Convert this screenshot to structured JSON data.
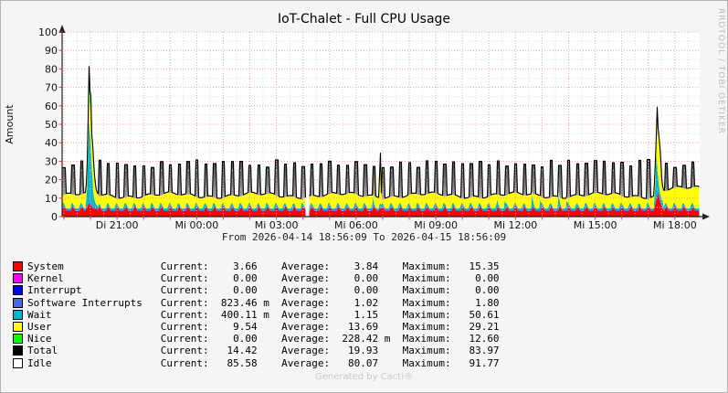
{
  "header": {
    "title": "IoT-Chalet - Full CPU Usage"
  },
  "watermark": "RRDTOOL / TOBI OETIKER",
  "footer": {
    "credit": "Generated by Cacti®"
  },
  "chart_data": {
    "type": "area",
    "title": "IoT-Chalet - Full CPU Usage",
    "xlabel": "",
    "ylabel": "Amount",
    "ylim": [
      0,
      100
    ],
    "y_tick_step": 10,
    "y_minor_step": 5,
    "subtitle": "From 2026-04-14 18:56:09 To 2026-04-15 18:56:09",
    "x_range_minutes": 1440,
    "x_first_hour_minute": 4,
    "x_ticks": [
      {
        "label": "Di 21:00",
        "minute": 124
      },
      {
        "label": "Mi 00:00",
        "minute": 304
      },
      {
        "label": "Mi 03:00",
        "minute": 484
      },
      {
        "label": "Mi 06:00",
        "minute": 664
      },
      {
        "label": "Mi 09:00",
        "minute": 844
      },
      {
        "label": "Mi 12:00",
        "minute": 1024
      },
      {
        "label": "Mi 15:00",
        "minute": 1204
      },
      {
        "label": "Mi 18:00",
        "minute": 1384
      }
    ],
    "grid": {
      "major_color": "#f2a0a0",
      "minor_color": "#dcdcdc",
      "tick_color": "#d94040",
      "axis_color": "#222222"
    },
    "legend_position": "bottom",
    "legend": [
      {
        "label": "System",
        "color": "#ff0000",
        "current": "3.66",
        "current_unit": "",
        "average": "3.84",
        "average_unit": "",
        "maximum": "15.35"
      },
      {
        "label": "Kernel",
        "color": "#ff00ff",
        "current": "0.00",
        "current_unit": "",
        "average": "0.00",
        "average_unit": "",
        "maximum": "0.00"
      },
      {
        "label": "Interrupt",
        "color": "#0000ff",
        "current": "0.00",
        "current_unit": "",
        "average": "0.00",
        "average_unit": "",
        "maximum": "0.00"
      },
      {
        "label": "Software Interrupts",
        "color": "#4668e4",
        "current": "823.46",
        "current_unit": "m",
        "average": "1.02",
        "average_unit": "",
        "maximum": "1.80"
      },
      {
        "label": "Wait",
        "color": "#00b8cd",
        "current": "400.11",
        "current_unit": "m",
        "average": "1.15",
        "average_unit": "",
        "maximum": "50.61"
      },
      {
        "label": "User",
        "color": "#ffff00",
        "current": "9.54",
        "current_unit": "",
        "average": "13.69",
        "average_unit": "",
        "maximum": "29.21"
      },
      {
        "label": "Nice",
        "color": "#00ff00",
        "current": "0.00",
        "current_unit": "",
        "average": "228.42",
        "average_unit": "m",
        "maximum": "12.60"
      },
      {
        "label": "Total",
        "color": "#000000",
        "current": "14.42",
        "current_unit": "",
        "average": "19.93",
        "average_unit": "",
        "maximum": "83.97"
      },
      {
        "label": "Idle",
        "color": "#ffffff",
        "current": "85.58",
        "current_unit": "",
        "average": "80.07",
        "average_unit": "",
        "maximum": "91.77"
      }
    ],
    "baseline": {
      "spike_period_min": 20,
      "spike_width_min": 7,
      "spike_height_min": 26.5,
      "spike_height_var": 4.5,
      "system_base": 3.0,
      "system_bump": 2.7,
      "swint_thickness": 0.9,
      "wait_base": 0.5,
      "wait_bump": 2.4,
      "wait_tall_bump": 5,
      "user_top": 11.2,
      "user_top_late": 14.6,
      "late_after_min": 1357
    },
    "gap": {
      "start_min": 549,
      "end_min": 555
    },
    "events": [
      [
        [
          52,
          4,
          4.9,
          7,
          12,
          12,
          12.4
        ],
        [
          55,
          5,
          5.9,
          13,
          21,
          22,
          22.4
        ],
        [
          57,
          6,
          6.9,
          28,
          40,
          43,
          43.4
        ],
        [
          59,
          6.5,
          7.4,
          46,
          60,
          68,
          68.4
        ],
        [
          60,
          7,
          7.9,
          54,
          70,
          83.5,
          84
        ],
        [
          61,
          7,
          7.9,
          52,
          68,
          82,
          82.4
        ],
        [
          62,
          6.5,
          7.4,
          44,
          59,
          66,
          66.4
        ],
        [
          64,
          6,
          6.9,
          39,
          56,
          65,
          65.4
        ],
        [
          65.5,
          5.5,
          6.4,
          29,
          43,
          45,
          45.4
        ],
        [
          67.5,
          5,
          5.9,
          21,
          39,
          41,
          41.4
        ],
        [
          70,
          4.5,
          5.4,
          12,
          28,
          30,
          30.4
        ],
        [
          73,
          4,
          4.9,
          8,
          18,
          19,
          19.4
        ],
        [
          77,
          4,
          4.9,
          6,
          13,
          13,
          13.4
        ],
        [
          82,
          3.5,
          4.4,
          5.5,
          11.5,
          11.5,
          11.9
        ]
      ],
      [
        [
          715,
          4,
          4.9,
          6.5,
          12,
          12,
          12.4
        ],
        [
          717,
          4.5,
          5.4,
          7,
          29.5,
          34.5,
          35
        ],
        [
          718.5,
          4.5,
          5.4,
          7,
          30,
          33.5,
          34
        ],
        [
          720,
          4,
          4.9,
          6.5,
          12.5,
          12.5,
          12.9
        ]
      ],
      [
        [
          1336,
          4,
          4.9,
          7,
          13.5,
          13.5,
          13.9
        ],
        [
          1339,
          7,
          7.9,
          18,
          30,
          30,
          30.4
        ],
        [
          1341,
          9,
          9.9,
          34,
          44,
          44,
          44.4
        ],
        [
          1343,
          11,
          11.9,
          28,
          51,
          51,
          59.5
        ],
        [
          1344.5,
          14,
          14.9,
          24,
          49,
          49,
          49.4
        ],
        [
          1346,
          12,
          12.9,
          18,
          45,
          45,
          45.4
        ],
        [
          1348.5,
          9,
          9.9,
          14,
          40,
          40,
          40.4
        ],
        [
          1351,
          7,
          7.9,
          11,
          31,
          31,
          31.4
        ],
        [
          1354,
          5.5,
          6.4,
          9,
          17,
          17,
          17.4
        ],
        [
          1357,
          5,
          5.9,
          8.5,
          15,
          15,
          15.4
        ]
      ]
    ]
  }
}
